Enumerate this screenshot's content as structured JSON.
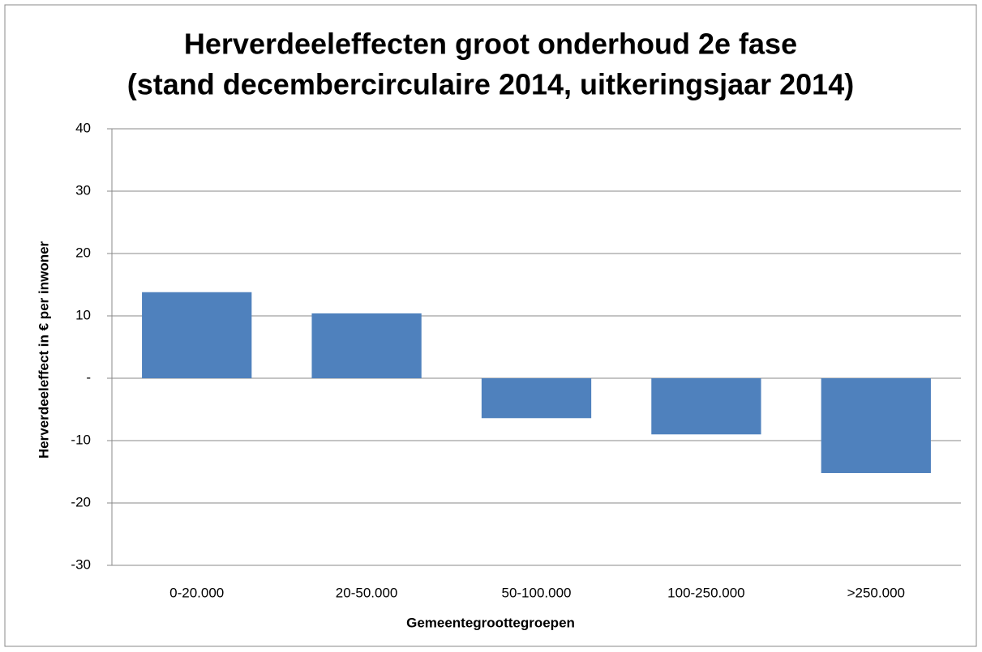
{
  "chart_data": {
    "type": "bar",
    "title": [
      "Herverdeeleffecten groot onderhoud 2e fase",
      "(stand decembercirculaire 2014, uitkeringsjaar 2014)"
    ],
    "x_label": "Gemeentegroottegroepen",
    "y_label": "Herverdeeleffect in € per inwoner",
    "categories": [
      "0-20.000",
      "20-50.000",
      "50-100.000",
      "100-250.000",
      ">250.000"
    ],
    "values": [
      13.8,
      10.4,
      -6.4,
      -9.0,
      -15.2
    ],
    "color": "#4f81bd",
    "ylim": [
      -30,
      40
    ],
    "yticks": [
      -30,
      -20,
      -10,
      {
        "value": 0,
        "label": "-"
      },
      10,
      20,
      30,
      40
    ],
    "grid": true
  }
}
